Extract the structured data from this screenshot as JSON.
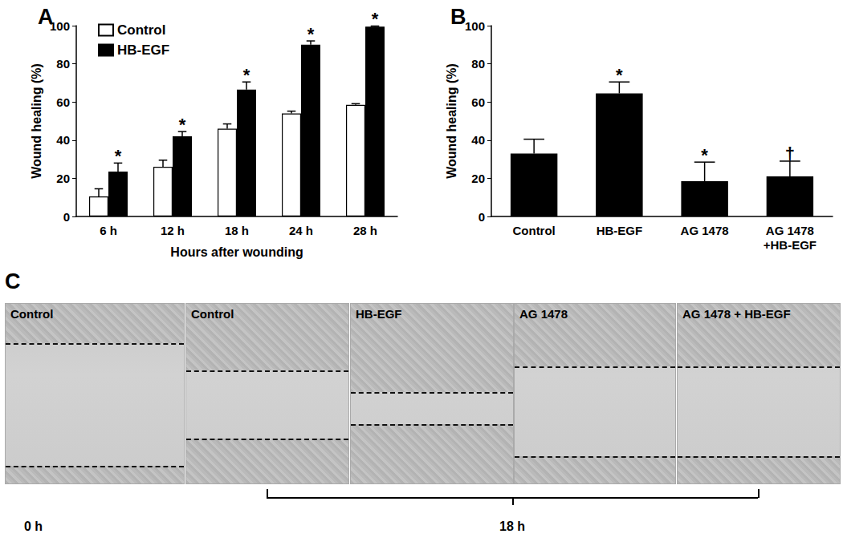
{
  "chart_data": [
    {
      "type": "bar",
      "title": "A",
      "categories": [
        "6 h",
        "12 h",
        "18 h",
        "24 h",
        "28 h"
      ],
      "x_label": "Hours after wounding",
      "y_label": "Wound healing (%)",
      "series": [
        {
          "name": "Control",
          "color": "#ffffff",
          "values": [
            10.5,
            26,
            46,
            54,
            58.5
          ],
          "errors": [
            4,
            3.5,
            2.5,
            1.2,
            0.6
          ]
        },
        {
          "name": "HB-EGF",
          "color": "#000000",
          "values": [
            23.5,
            42,
            66.5,
            90,
            99.5
          ],
          "errors": [
            4.5,
            2.5,
            4,
            2,
            0.3
          ],
          "significance": [
            "*",
            "*",
            "*",
            "*",
            "*"
          ]
        }
      ],
      "ylim": [
        0,
        100
      ],
      "yticks": [
        0,
        20,
        40,
        60,
        80,
        100
      ],
      "grid": false,
      "legend": "upper left"
    },
    {
      "type": "bar",
      "title": "B",
      "categories": [
        "Control",
        "HB-EGF",
        "AG 1478",
        "AG 1478\n+HB-EGF"
      ],
      "y_label": "Wound healing (%)",
      "values": [
        33,
        64.5,
        18.5,
        21
      ],
      "errors": [
        7.5,
        6,
        10,
        8
      ],
      "significance": [
        null,
        "*",
        "*",
        "†"
      ],
      "color": "#000000",
      "ylim": [
        0,
        100
      ],
      "yticks": [
        0,
        20,
        40,
        60,
        80,
        100
      ],
      "grid": false
    }
  ],
  "panel_c": {
    "title": "C",
    "images": [
      "Control",
      "Control",
      "HB-EGF",
      "AG 1478",
      "AG 1478 + HB-EGF"
    ],
    "time_labels": [
      "0 h",
      "18 h"
    ]
  }
}
